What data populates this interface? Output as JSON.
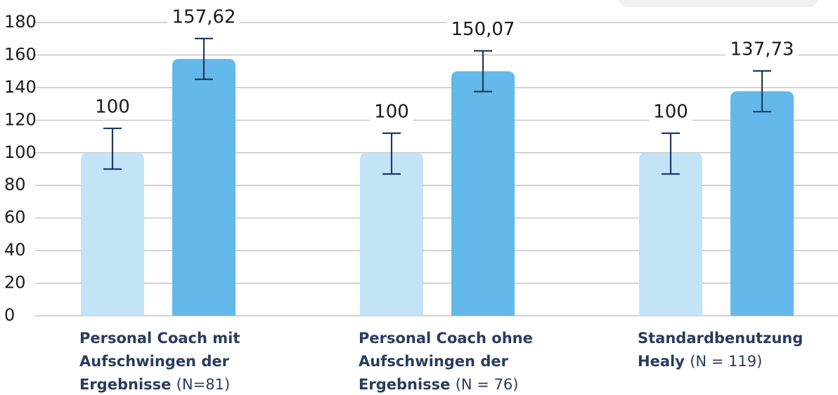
{
  "chart_data": {
    "type": "bar",
    "categories": [
      "Personal Coach mit Aufschwingen der Ergebnisse (N=81)",
      "Personal Coach ohne Aufschwingen der Ergebnisse (N = 76)",
      "Standardbenutzung Healy (N = 119)"
    ],
    "series": [
      {
        "color": "#c3e4f6",
        "values": [
          100,
          100,
          100
        ],
        "value_labels": [
          "100",
          "100",
          "100"
        ],
        "error_minus": [
          10,
          13,
          13
        ],
        "error_plus": [
          15,
          12,
          12
        ]
      },
      {
        "color": "#63b9e9",
        "values": [
          157.62,
          150.07,
          137.73
        ],
        "value_labels": [
          "157,62",
          "150,07",
          "137,73"
        ],
        "error_minus": [
          12.5,
          12.5,
          12.5
        ],
        "error_plus": [
          12.5,
          12.5,
          12.5
        ]
      }
    ],
    "error_color": "#1f3a63",
    "ylim": [
      0,
      180
    ],
    "yticks": [
      0,
      20,
      40,
      60,
      80,
      100,
      120,
      140,
      160,
      180
    ],
    "grid": true
  }
}
